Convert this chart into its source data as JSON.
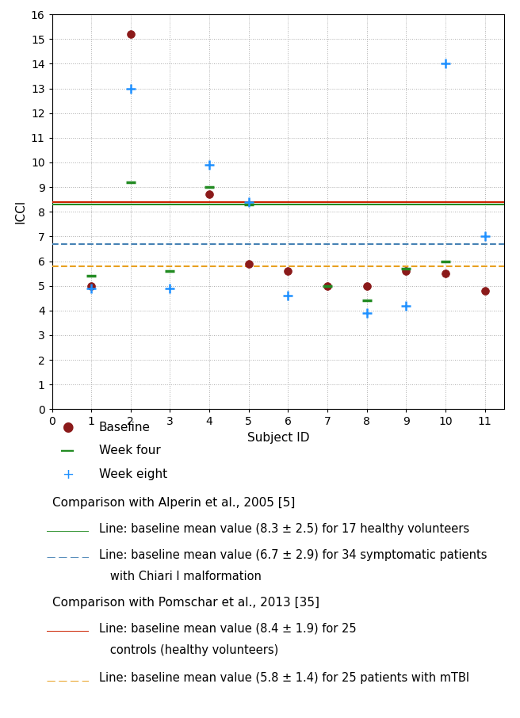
{
  "baseline_x": [
    1,
    2,
    4,
    5,
    6,
    7,
    8,
    9,
    10,
    11
  ],
  "baseline_y": [
    5.0,
    15.2,
    8.7,
    5.9,
    5.6,
    5.0,
    5.0,
    5.6,
    5.5,
    4.8
  ],
  "week_four_x": [
    1,
    2,
    3,
    4,
    5,
    7,
    8,
    9,
    10
  ],
  "week_four_y": [
    5.4,
    9.2,
    5.6,
    9.0,
    8.3,
    5.0,
    4.4,
    5.7,
    6.0
  ],
  "week_eight_x": [
    1,
    2,
    3,
    4,
    5,
    6,
    8,
    9,
    10,
    11
  ],
  "week_eight_y": [
    4.9,
    13.0,
    4.9,
    9.9,
    8.4,
    4.6,
    3.9,
    4.2,
    14.0,
    7.0
  ],
  "hline_green": 8.3,
  "hline_blue_dashed": 6.7,
  "hline_red": 8.4,
  "hline_orange_dashed": 5.8,
  "baseline_color": "#8B1A1A",
  "week_four_color": "#228B22",
  "week_eight_color": "#1E90FF",
  "green_line_color": "#228B22",
  "blue_dashed_color": "#4682B4",
  "red_line_color": "#CC2200",
  "orange_dashed_color": "#E8A020",
  "xlabel": "Subject ID",
  "ylabel": "ICCI",
  "xlim": [
    0,
    11.5
  ],
  "ylim": [
    0,
    16
  ],
  "yticks": [
    0,
    1,
    2,
    3,
    4,
    5,
    6,
    7,
    8,
    9,
    10,
    11,
    12,
    13,
    14,
    15,
    16
  ],
  "xticks": [
    0,
    1,
    2,
    3,
    4,
    5,
    6,
    7,
    8,
    9,
    10,
    11
  ],
  "legend_baseline": "Baseline",
  "legend_weekfour": "Week four",
  "legend_weekeight": "Week eight",
  "ann_alperin_header": "Comparison with Alperin et al., 2005 [5]",
  "ann_alperin_green": "Line: baseline mean value (8.3 ± 2.5) for 17 healthy volunteers",
  "ann_alperin_blue_line1": "Line: baseline mean value (6.7 ± 2.9) for 34 symptomatic patients",
  "ann_alperin_blue_line2": "   with Chiari I malformation",
  "ann_pomschar_header": "Comparison with Pomschar et al., 2013 [35]",
  "ann_pomschar_red_line1": "Line: baseline mean value (8.4 ± 1.9) for 25",
  "ann_pomschar_red_line2": "   controls (healthy volunteers)",
  "ann_pomschar_orange": "Line: baseline mean value (5.8 ± 1.4) for 25 patients with mTBI"
}
